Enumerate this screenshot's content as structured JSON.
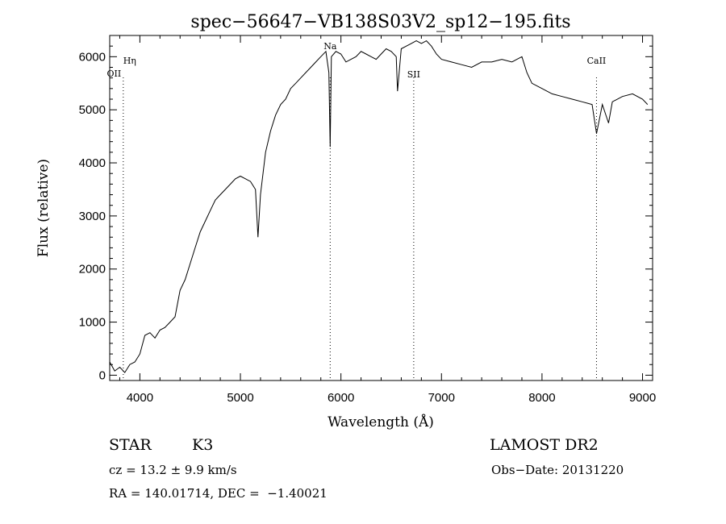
{
  "chart_data": {
    "type": "line",
    "title": "spec−56647−VB138S03V2_sp12−195.fits",
    "xlabel": "Wavelength (Å)",
    "ylabel": "Flux (relative)",
    "xlim": [
      3700,
      9100
    ],
    "ylim": [
      -100,
      6400
    ],
    "xticks": [
      4000,
      5000,
      6000,
      7000,
      8000,
      9000
    ],
    "yticks": [
      0,
      1000,
      2000,
      3000,
      4000,
      5000,
      6000
    ],
    "grid": false,
    "line_color": "#000000",
    "series": [
      {
        "x": [
          3700,
          3750,
          3800,
          3850,
          3900,
          3950,
          4000,
          4050,
          4100,
          4150,
          4200,
          4250,
          4300,
          4350,
          4400,
          4450,
          4500,
          4550,
          4600,
          4650,
          4700,
          4750,
          4800,
          4850,
          4900,
          4950,
          5000,
          5050,
          5100,
          5150,
          5175,
          5200,
          5250,
          5300,
          5350,
          5400,
          5450,
          5500,
          5550,
          5600,
          5650,
          5700,
          5750,
          5800,
          5850,
          5880,
          5893,
          5905,
          5950,
          6000,
          6050,
          6100,
          6150,
          6200,
          6250,
          6300,
          6350,
          6400,
          6450,
          6500,
          6550,
          6563,
          6600,
          6650,
          6700,
          6750,
          6800,
          6850,
          6900,
          6950,
          7000,
          7100,
          7200,
          7300,
          7400,
          7500,
          7600,
          7700,
          7750,
          7800,
          7850,
          7900,
          8000,
          8100,
          8200,
          8300,
          8400,
          8498,
          8542,
          8600,
          8662,
          8700,
          8800,
          8900,
          9000,
          9050
        ],
        "y": [
          250,
          80,
          150,
          50,
          200,
          250,
          400,
          750,
          800,
          700,
          850,
          900,
          1000,
          1100,
          1600,
          1800,
          2100,
          2400,
          2700,
          2900,
          3100,
          3300,
          3400,
          3500,
          3600,
          3700,
          3750,
          3700,
          3650,
          3500,
          2600,
          3400,
          4200,
          4600,
          4900,
          5100,
          5200,
          5400,
          5500,
          5600,
          5700,
          5800,
          5900,
          6000,
          6100,
          5700,
          4300,
          6000,
          6100,
          6050,
          5900,
          5950,
          6000,
          6100,
          6050,
          6000,
          5950,
          6050,
          6150,
          6100,
          6000,
          5350,
          6150,
          6200,
          6250,
          6300,
          6250,
          6300,
          6200,
          6050,
          5950,
          5900,
          5850,
          5800,
          5900,
          5900,
          5950,
          5900,
          5950,
          6000,
          5700,
          5500,
          5400,
          5300,
          5250,
          5200,
          5150,
          5100,
          4550,
          5100,
          4750,
          5150,
          5250,
          5300,
          5200,
          5100
        ]
      }
    ],
    "lines": [
      {
        "label": "Hη",
        "x": 3835
      },
      {
        "label": "OII",
        "x": 3727
      },
      {
        "label": "Na",
        "x": 5893
      },
      {
        "label": "SII",
        "x": 6724
      },
      {
        "label": "CaII",
        "x": 8542
      }
    ]
  },
  "info": {
    "object_class": "STAR",
    "subclass": "K3",
    "survey": "LAMOST DR2",
    "cz_line": "cz = 13.2 ± 9.9 km/s",
    "obs_date_line": "Obs−Date: 20131220",
    "coords_line": "RA = 140.01714, DEC =  −1.40021"
  }
}
